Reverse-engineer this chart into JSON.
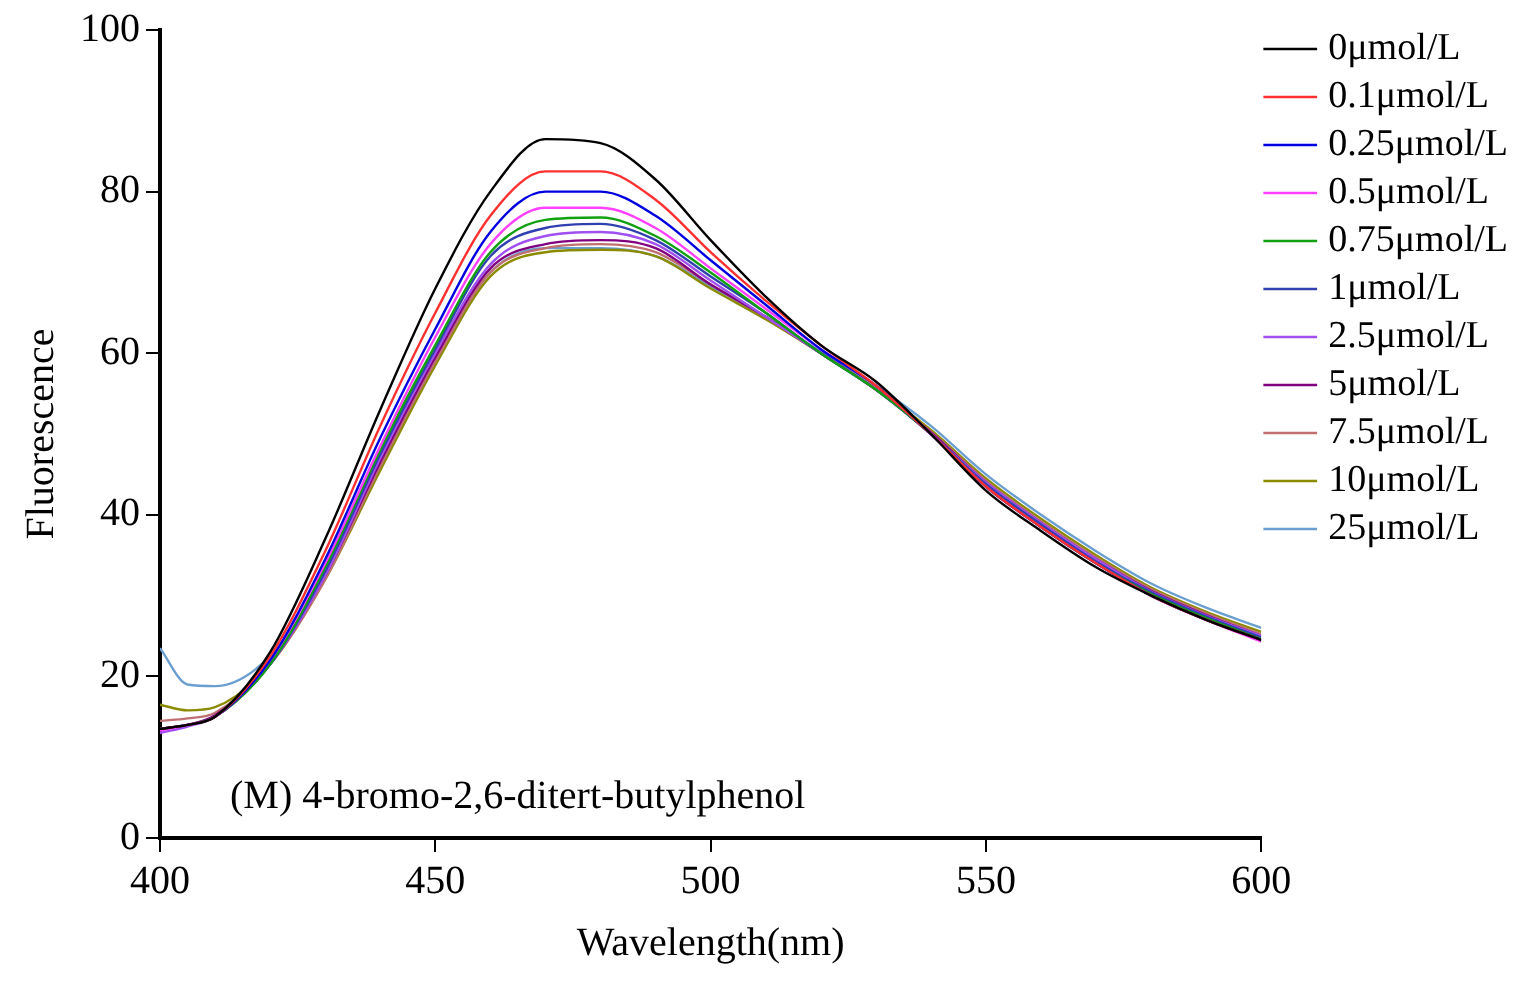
{
  "chart_data": {
    "type": "line",
    "xlabel": "Wavelength(nm)",
    "ylabel": "Fluorescence",
    "annotations": [
      "(M) 4-bromo-2,6-ditert-butylphenol"
    ],
    "x": [
      400,
      405,
      410,
      420,
      430,
      440,
      450,
      460,
      470,
      480,
      490,
      500,
      510,
      520,
      530,
      540,
      550,
      560,
      570,
      580,
      590,
      600
    ],
    "xlim": [
      400,
      600
    ],
    "xticks": [
      400,
      450,
      500,
      550,
      600
    ],
    "ylim": [
      0,
      100
    ],
    "yticks": [
      0,
      20,
      40,
      60,
      80,
      100
    ],
    "grid": false,
    "legend": "right",
    "marker": "none",
    "line_style": "solid",
    "series": [
      {
        "name": "0μmol/L",
        "color": "#000000",
        "values": [
          13.5,
          14,
          15,
          23,
          37,
          53,
          68,
          80,
          86.5,
          86,
          81.5,
          74,
          67,
          61,
          56.5,
          50,
          43,
          38,
          33.5,
          30,
          27,
          24.5
        ]
      },
      {
        "name": "0.1μmol/L",
        "color": "#ff3030",
        "values": [
          13.5,
          14,
          15,
          22.5,
          35.5,
          51,
          65,
          77,
          82.5,
          82.5,
          79,
          72.5,
          66.5,
          61,
          56,
          50,
          43.5,
          38.5,
          34,
          30,
          27,
          24.5
        ]
      },
      {
        "name": "0.25μmol/L",
        "color": "#0000e0",
        "values": [
          13.5,
          14,
          15,
          22,
          34.5,
          49.5,
          63,
          75,
          80,
          80,
          77,
          71.5,
          66,
          60.5,
          56,
          50,
          43.5,
          38.5,
          34,
          30,
          27,
          24.5
        ]
      },
      {
        "name": "0.5μmol/L",
        "color": "#ff40ff",
        "values": [
          13.3,
          14,
          15,
          22,
          34,
          48.5,
          62,
          73.5,
          78,
          78,
          75.5,
          70.5,
          65.5,
          60.5,
          56,
          50,
          43.5,
          38.5,
          34,
          30,
          27,
          24.3
        ]
      },
      {
        "name": "0.75μmol/L",
        "color": "#10a010",
        "values": [
          13.5,
          14,
          15,
          21.5,
          33.5,
          48,
          61,
          72.5,
          76.5,
          76.8,
          74.5,
          70,
          65,
          60,
          55.5,
          50,
          43.5,
          38.5,
          34,
          30.2,
          27.2,
          24.6
        ]
      },
      {
        "name": "1μmol/L",
        "color": "#3040b0",
        "values": [
          13.5,
          14,
          15,
          21.5,
          33,
          47.5,
          60.5,
          72,
          75.5,
          76,
          74,
          69.5,
          65,
          60,
          55.5,
          50,
          43.8,
          38.8,
          34.2,
          30.4,
          27.4,
          24.8
        ]
      },
      {
        "name": "2.5μmol/L",
        "color": "#a050f0",
        "values": [
          13,
          13.8,
          15,
          21.5,
          32.5,
          47,
          60,
          71,
          74.5,
          75,
          73.5,
          69,
          64.5,
          60,
          55.5,
          50,
          44,
          39,
          34.5,
          30.5,
          27.5,
          25
        ]
      },
      {
        "name": "5μmol/L",
        "color": "#800080",
        "values": [
          13.5,
          14,
          15.2,
          21.5,
          32.5,
          46.5,
          59.5,
          70.5,
          73.5,
          74,
          73,
          68.5,
          64.5,
          60,
          55.5,
          50.2,
          44,
          39,
          34.5,
          30.6,
          27.6,
          25
        ]
      },
      {
        "name": "7.5μmol/L",
        "color": "#c07070",
        "values": [
          14.5,
          14.8,
          15.5,
          21.5,
          32,
          46,
          59,
          70,
          73,
          73.5,
          72.5,
          68.5,
          64.5,
          60,
          55.5,
          50.3,
          44.2,
          39.2,
          34.7,
          30.8,
          27.8,
          25.2
        ]
      },
      {
        "name": "10μmol/L",
        "color": "#8b8b00",
        "values": [
          16.5,
          15.8,
          16.2,
          21.5,
          32,
          45.5,
          58.5,
          69.5,
          72.5,
          72.8,
          72,
          68,
          64.2,
          60,
          55.6,
          50.5,
          44.5,
          39.5,
          35,
          31,
          28,
          25.5
        ]
      },
      {
        "name": "25μmol/L",
        "color": "#6a9fd0",
        "values": [
          23.5,
          19,
          18.8,
          22.5,
          32.5,
          46,
          59,
          70,
          73,
          73,
          72,
          68.3,
          64.5,
          60.2,
          56,
          51,
          45,
          40,
          35.5,
          31.5,
          28.5,
          26
        ]
      }
    ]
  }
}
